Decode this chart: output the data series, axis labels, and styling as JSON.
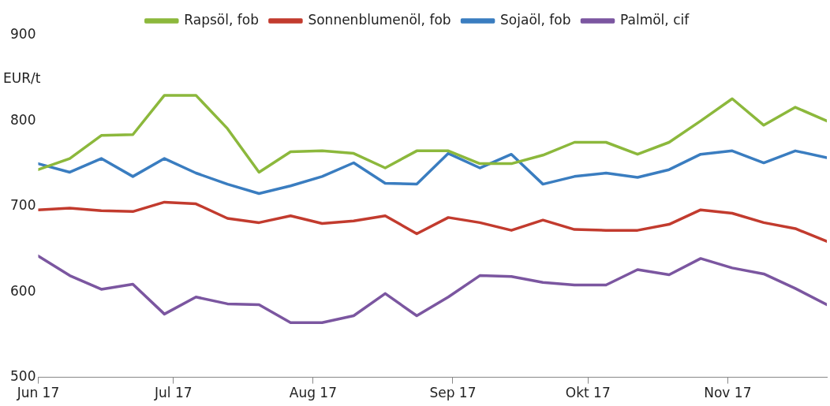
{
  "chart_data": {
    "type": "line",
    "ylabel": "EUR/t",
    "x": [
      "2017-06-01",
      "2017-06-08",
      "2017-06-15",
      "2017-06-22",
      "2017-06-29",
      "2017-07-06",
      "2017-07-13",
      "2017-07-20",
      "2017-07-27",
      "2017-08-03",
      "2017-08-10",
      "2017-08-17",
      "2017-08-24",
      "2017-08-31",
      "2017-09-07",
      "2017-09-14",
      "2017-09-21",
      "2017-09-28",
      "2017-10-05",
      "2017-10-12",
      "2017-10-19",
      "2017-10-26",
      "2017-11-02",
      "2017-11-09",
      "2017-11-16",
      "2017-11-23"
    ],
    "series": [
      {
        "name": "Rapsöl, fob",
        "color": "#8cb83c",
        "values": [
          743,
          756,
          783,
          784,
          830,
          830,
          791,
          740,
          764,
          765,
          762,
          745,
          765,
          765,
          750,
          750,
          760,
          775,
          775,
          761,
          775,
          800,
          826,
          795,
          816,
          800
        ]
      },
      {
        "name": "Sonnenblumenöl, fob",
        "color": "#c23b2e",
        "values": [
          696,
          698,
          695,
          694,
          705,
          703,
          686,
          681,
          689,
          680,
          683,
          689,
          668,
          687,
          681,
          672,
          684,
          673,
          672,
          672,
          679,
          696,
          692,
          681,
          674,
          659
        ]
      },
      {
        "name": "Sojaöl, fob",
        "color": "#3a7dc0",
        "values": [
          750,
          740,
          756,
          735,
          756,
          739,
          726,
          715,
          724,
          735,
          751,
          727,
          726,
          762,
          745,
          761,
          726,
          735,
          739,
          734,
          743,
          761,
          765,
          751,
          765,
          757
        ]
      },
      {
        "name": "Palmöl, cif",
        "color": "#7b56a0",
        "values": [
          642,
          619,
          603,
          609,
          574,
          594,
          586,
          585,
          564,
          564,
          572,
          598,
          572,
          594,
          619,
          618,
          611,
          608,
          608,
          626,
          620,
          639,
          628,
          621,
          604,
          585
        ]
      }
    ],
    "xlim": [
      "2017-06-01",
      "2017-11-23"
    ],
    "xticks": [
      {
        "value": "2017-06-01",
        "label": "Jun 17"
      },
      {
        "value": "2017-07-01",
        "label": "Jul 17"
      },
      {
        "value": "2017-08-01",
        "label": "Aug 17"
      },
      {
        "value": "2017-09-01",
        "label": "Sep 17"
      },
      {
        "value": "2017-10-01",
        "label": "Okt 17"
      },
      {
        "value": "2017-11-01",
        "label": "Nov 17"
      }
    ],
    "ylim": [
      500,
      900
    ],
    "yticks": [
      500,
      600,
      700,
      800,
      900
    ],
    "grid": false,
    "legend": "top",
    "marker": "none",
    "line_style": "solid"
  }
}
